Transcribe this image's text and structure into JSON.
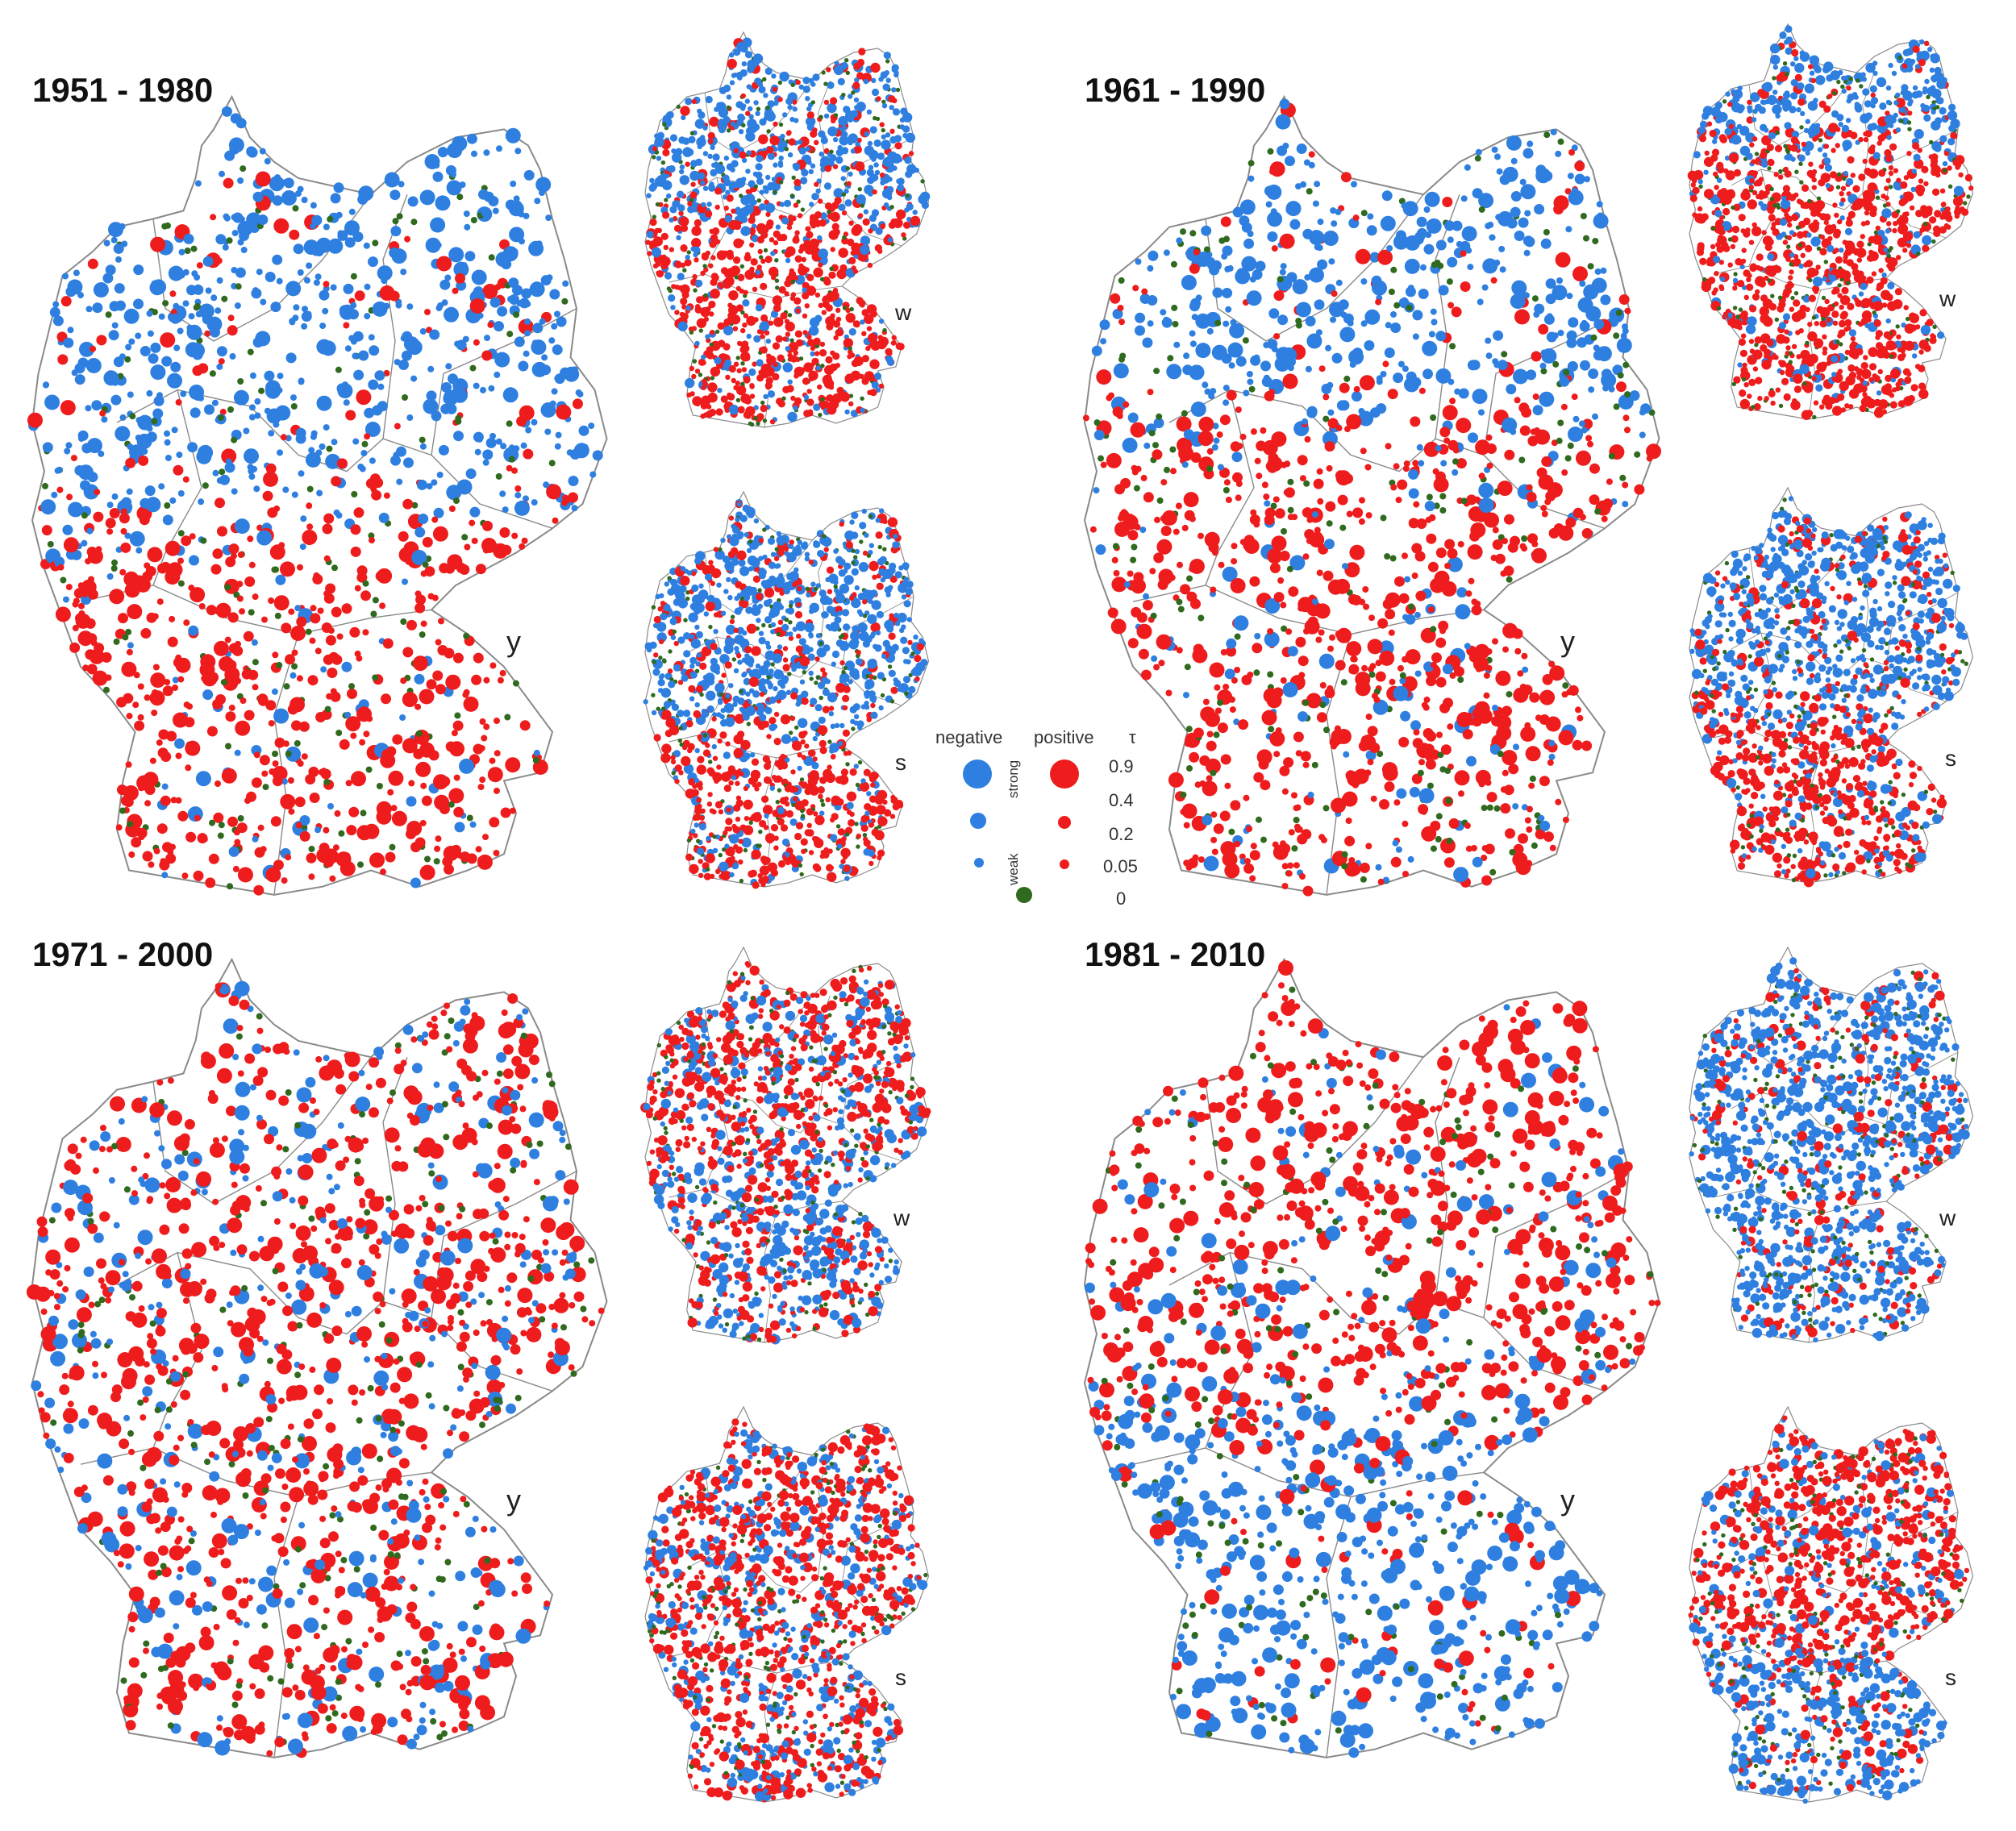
{
  "figure": {
    "colors": {
      "negative": "#2e7fe0",
      "positive": "#ee1c1c",
      "zero": "#2f6a1e",
      "border": "#8a8a8a"
    },
    "periods": [
      {
        "title": "1951 - 1980",
        "main_label": "y",
        "winter_label": "w",
        "summer_label": "s",
        "y": {
          "north": "negative",
          "south": "positive",
          "split": 0.5,
          "mix": 0.12
        },
        "w": {
          "north": "negative",
          "south": "positive",
          "split": 0.45,
          "mix": 0.2
        },
        "s": {
          "north": "negative",
          "south": "positive",
          "split": 0.6,
          "mix": 0.25
        }
      },
      {
        "title": "1961 - 1990",
        "main_label": "y",
        "winter_label": "w",
        "summer_label": "s",
        "y": {
          "north": "negative",
          "south": "positive",
          "split": 0.4,
          "mix": 0.15
        },
        "w": {
          "north": "negative",
          "south": "positive",
          "split": 0.3,
          "mix": 0.15
        },
        "s": {
          "north": "negative",
          "south": "positive",
          "split": 0.55,
          "mix": 0.22
        }
      },
      {
        "title": "1971 - 2000",
        "main_label": "y",
        "winter_label": "w",
        "summer_label": "s",
        "y": {
          "north": "positive",
          "south": "positive",
          "split": 0.5,
          "mix": 0.3
        },
        "w": {
          "north": "positive",
          "south": "negative",
          "split": 0.55,
          "mix": 0.35
        },
        "s": {
          "north": "positive",
          "south": "positive",
          "split": 0.5,
          "mix": 0.35
        }
      },
      {
        "title": "1981 - 2010",
        "main_label": "y",
        "winter_label": "w",
        "summer_label": "s",
        "y": {
          "north": "positive",
          "south": "negative",
          "split": 0.55,
          "mix": 0.15
        },
        "w": {
          "north": "negative",
          "south": "negative",
          "split": 0.5,
          "mix": 0.2
        },
        "s": {
          "north": "positive",
          "south": "negative",
          "split": 0.6,
          "mix": 0.22
        }
      }
    ],
    "legend": {
      "negative": "negative",
      "positive": "positive",
      "tau": "τ",
      "strong": "strong",
      "weak": "weak",
      "values": [
        "0.9",
        "0.4",
        "0.2",
        "0.05",
        "0"
      ]
    }
  }
}
